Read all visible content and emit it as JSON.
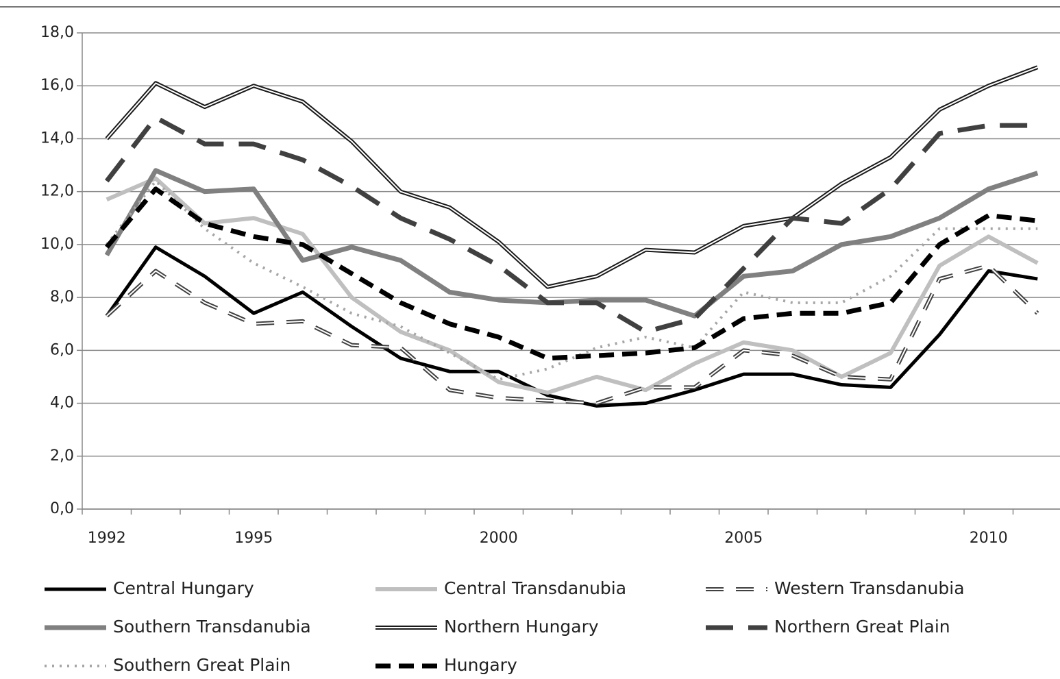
{
  "chart_data": {
    "type": "line",
    "categories": [
      "1992",
      null,
      null,
      "1995",
      null,
      null,
      null,
      null,
      "2000",
      null,
      null,
      null,
      null,
      "2005",
      null,
      null,
      null,
      null,
      "2010",
      null
    ],
    "ylim": [
      0,
      18
    ],
    "yticks": [
      {
        "value": 0,
        "label": "0,0"
      },
      {
        "value": 2,
        "label": "2,0"
      },
      {
        "value": 4,
        "label": "4,0"
      },
      {
        "value": 6,
        "label": "6,0"
      },
      {
        "value": 8,
        "label": "8,0"
      },
      {
        "value": 10,
        "label": "10,0"
      },
      {
        "value": 12,
        "label": "12,0"
      },
      {
        "value": 14,
        "label": "14,0"
      },
      {
        "value": 16,
        "label": "16,0"
      },
      {
        "value": 18,
        "label": "18,0"
      }
    ],
    "grid": true,
    "series": [
      {
        "name": "Central Hungary",
        "color": "#000000",
        "values": [
          7.3,
          9.9,
          8.8,
          7.4,
          8.2,
          6.9,
          5.7,
          5.2,
          5.2,
          4.3,
          3.9,
          4.0,
          4.5,
          5.1,
          5.1,
          4.7,
          4.6,
          6.6,
          9.0,
          8.7
        ]
      },
      {
        "name": "Central Transdanubia",
        "color": "#bfbfbf",
        "values": [
          11.7,
          12.5,
          10.8,
          11.0,
          10.4,
          8.0,
          6.7,
          6.0,
          4.8,
          4.4,
          5.0,
          4.5,
          5.5,
          6.3,
          6.0,
          5.0,
          5.9,
          9.2,
          10.3,
          9.3
        ]
      },
      {
        "name": "Western Transdanubia",
        "color": "#404040",
        "values": [
          7.3,
          9.0,
          7.8,
          7.0,
          7.1,
          6.2,
          6.1,
          4.5,
          4.2,
          4.1,
          4.0,
          4.6,
          4.6,
          6.0,
          5.8,
          5.0,
          4.9,
          8.7,
          9.2,
          7.4
        ]
      },
      {
        "name": "Southern Transdanubia",
        "color": "#808080",
        "values": [
          9.6,
          12.8,
          12.0,
          12.1,
          9.4,
          9.9,
          9.4,
          8.2,
          7.9,
          7.8,
          7.9,
          7.9,
          7.3,
          8.8,
          9.0,
          10.0,
          10.3,
          11.0,
          12.1,
          12.7
        ]
      },
      {
        "name": "Northern Hungary",
        "color": "#1a1a1a",
        "values": [
          14.0,
          16.1,
          15.2,
          16.0,
          15.4,
          13.9,
          12.0,
          11.4,
          10.1,
          8.4,
          8.8,
          9.8,
          9.7,
          10.7,
          11.0,
          12.3,
          13.3,
          15.1,
          16.0,
          16.7
        ]
      },
      {
        "name": "Northern Great Plain",
        "color": "#404040",
        "values": [
          12.4,
          14.8,
          13.8,
          13.8,
          13.2,
          12.2,
          11.0,
          10.2,
          9.2,
          7.8,
          7.8,
          6.7,
          7.2,
          9.1,
          11.0,
          10.8,
          12.1,
          14.2,
          14.5,
          14.5
        ]
      },
      {
        "name": "Southern Great Plain",
        "color": "#a6a6a6",
        "values": [
          10.0,
          12.4,
          10.6,
          9.3,
          8.4,
          7.4,
          6.9,
          5.9,
          4.9,
          5.3,
          6.1,
          6.5,
          6.1,
          8.2,
          7.8,
          7.8,
          8.8,
          10.6,
          10.6,
          10.6
        ]
      },
      {
        "name": "Hungary",
        "color": "#000000",
        "values": [
          9.9,
          12.1,
          10.8,
          10.3,
          10.0,
          8.9,
          7.8,
          7.0,
          6.5,
          5.7,
          5.8,
          5.9,
          6.1,
          7.2,
          7.4,
          7.4,
          7.8,
          10.0,
          11.1,
          10.9
        ]
      }
    ]
  }
}
